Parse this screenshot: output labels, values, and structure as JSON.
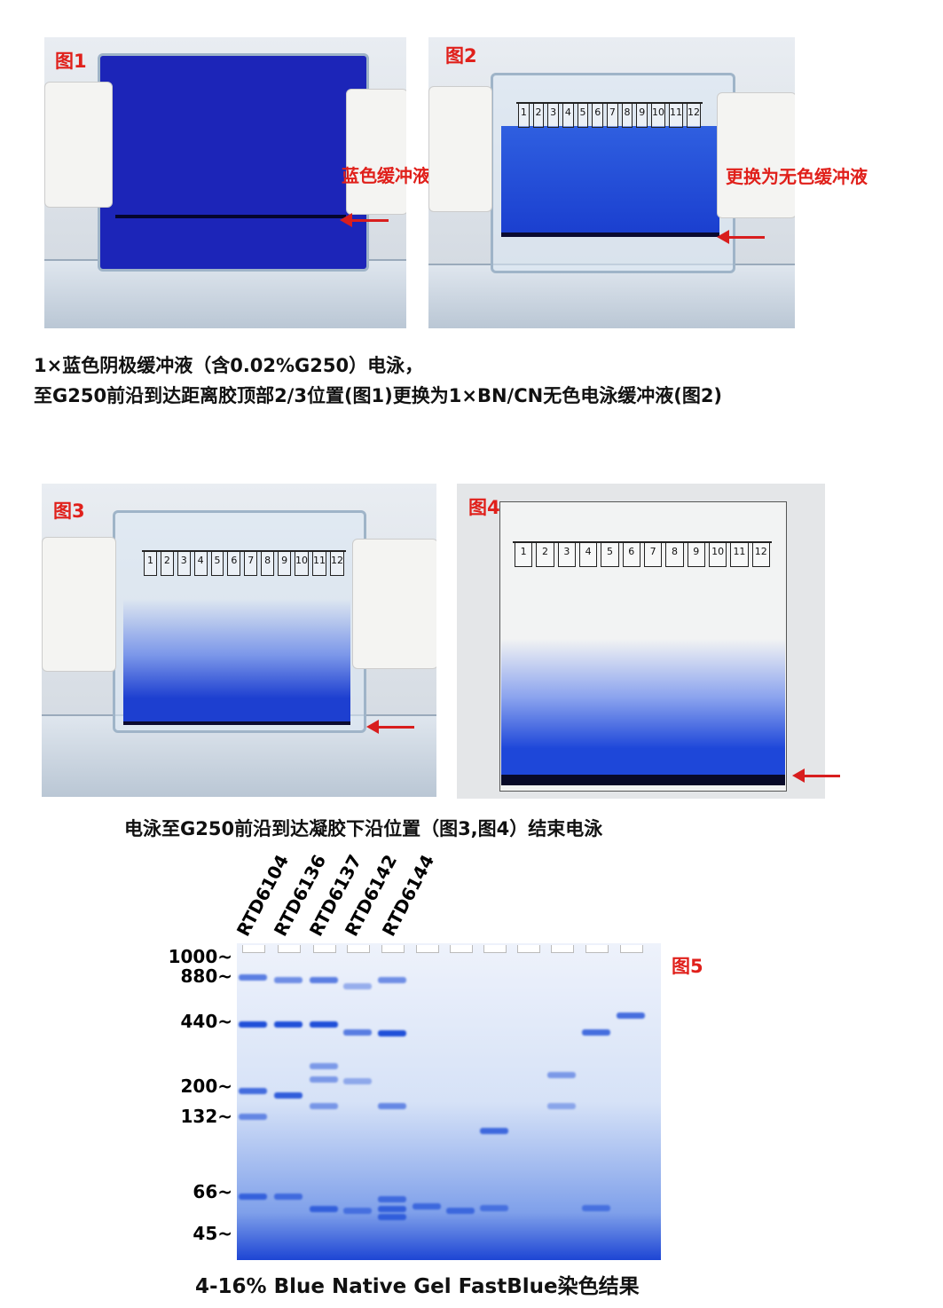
{
  "figures": {
    "fig1": {
      "label": "图1",
      "note": "蓝色缓冲液"
    },
    "fig2": {
      "label": "图2",
      "note": "更换为无色缓冲液",
      "wells": [
        "1",
        "2",
        "3",
        "4",
        "5",
        "6",
        "7",
        "8",
        "9",
        "10",
        "11",
        "12"
      ]
    },
    "fig3": {
      "label": "图3",
      "wells": [
        "1",
        "2",
        "3",
        "4",
        "5",
        "6",
        "7",
        "8",
        "9",
        "10",
        "11",
        "12"
      ]
    },
    "fig4": {
      "label": "图4",
      "wells": [
        "1",
        "2",
        "3",
        "4",
        "5",
        "6",
        "7",
        "8",
        "9",
        "10",
        "11",
        "12"
      ]
    },
    "fig5": {
      "label": "图5"
    }
  },
  "captions": {
    "line1": "1×蓝色阴极缓冲液（含0.02%G250）电泳，",
    "line2": "至G250前沿到达距离胶顶部2/3位置(图1)更换为1×BN/CN无色电泳缓冲液(图2)",
    "line3": "电泳至G250前沿到达凝胶下沿位置（图3,图4）结束电泳",
    "line4": "4-16% Blue Native Gel FastBlue染色结果"
  },
  "gel": {
    "lane_labels": [
      "RTD6104",
      "RTD6136",
      "RTD6137",
      "RTD6142",
      "RTD6144"
    ],
    "markers": [
      "1000~",
      "880~",
      "440~",
      "200~",
      "132~",
      "66~",
      "45~"
    ],
    "colors": {
      "stain": "#1f4fd8",
      "background": "#dfe8f7"
    }
  }
}
